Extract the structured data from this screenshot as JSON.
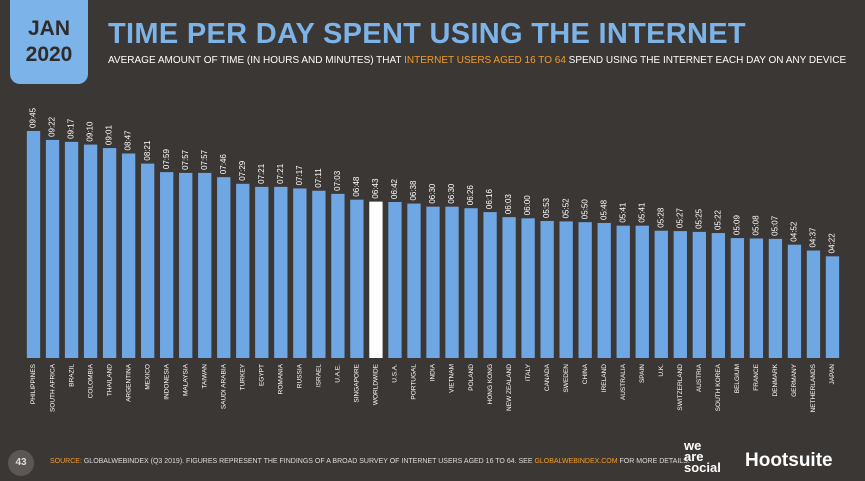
{
  "header": {
    "month": "JAN",
    "year": "2020",
    "title": "TIME PER DAY SPENT USING THE INTERNET",
    "subtitle": [
      "AVERAGE AMOUNT OF TIME (IN HOURS AND MINUTES) THAT",
      "INTERNET USERS AGED 16 TO 64",
      "SPEND USING THE INTERNET EACH DAY ON ANY DEVICE"
    ]
  },
  "chart_data": {
    "type": "bar",
    "categories": [
      "PHILIPPINES",
      "SOUTH AFRICA",
      "BRAZIL",
      "COLOMBIA",
      "THAILAND",
      "ARGENTINA",
      "MEXICO",
      "INDONESIA",
      "MALAYSIA",
      "TAIWAN",
      "SAUDI ARABIA",
      "TURKEY",
      "EGYPT",
      "ROMANIA",
      "RUSSIA",
      "ISRAEL",
      "U.A.E.",
      "SINGAPORE",
      "WORLDWIDE",
      "U.S.A.",
      "PORTUGAL",
      "INDIA",
      "VIETNAM",
      "POLAND",
      "HONG KONG",
      "NEW ZEALAND",
      "ITALY",
      "CANADA",
      "SWEDEN",
      "CHINA",
      "IRELAND",
      "AUSTRALIA",
      "SPAIN",
      "U.K.",
      "SWITZERLAND",
      "AUSTRIA",
      "SOUTH KOREA",
      "BELGIUM",
      "FRANCE",
      "DENMARK",
      "GERMANY",
      "NETHERLANDS",
      "JAPAN"
    ],
    "values": [
      585,
      562,
      557,
      550,
      541,
      527,
      501,
      479,
      477,
      477,
      466,
      449,
      441,
      441,
      437,
      431,
      423,
      408,
      403,
      402,
      398,
      390,
      390,
      386,
      376,
      363,
      360,
      353,
      352,
      350,
      348,
      341,
      341,
      328,
      327,
      325,
      322,
      309,
      308,
      307,
      292,
      277,
      262
    ],
    "value_labels": [
      "09:45",
      "09:22",
      "09:17",
      "09:10",
      "09:01",
      "08:47",
      "08:21",
      "07:59",
      "07:57",
      "07:57",
      "07:46",
      "07:29",
      "07:21",
      "07:21",
      "07:17",
      "07:11",
      "07:03",
      "06:48",
      "06:43",
      "06:42",
      "06:38",
      "06:30",
      "06:30",
      "06:26",
      "06:16",
      "06:03",
      "06:00",
      "05:53",
      "05:52",
      "05:50",
      "05:48",
      "05:41",
      "05:41",
      "05:28",
      "05:27",
      "05:25",
      "05:22",
      "05:09",
      "05:08",
      "05:07",
      "04:52",
      "04:37",
      "04:22"
    ],
    "color": "#6fa6e4",
    "highlight_category": "WORLDWIDE",
    "highlight_color": "#ffffff"
  },
  "footer": {
    "page": "43",
    "source_label": "SOURCE:",
    "source": "GLOBALWEBINDEX (Q3 2019). FIGURES REPRESENT THE FINDINGS OF A BROAD SURVEY OF INTERNET USERS AGED 16 TO 64. SEE",
    "link": "GLOBALWEBINDEX.COM",
    "end": "FOR MORE DETAILS."
  },
  "logos": {
    "we": "we",
    "are": "are",
    "social": "social",
    "hootsuite": "Hootsuite"
  }
}
